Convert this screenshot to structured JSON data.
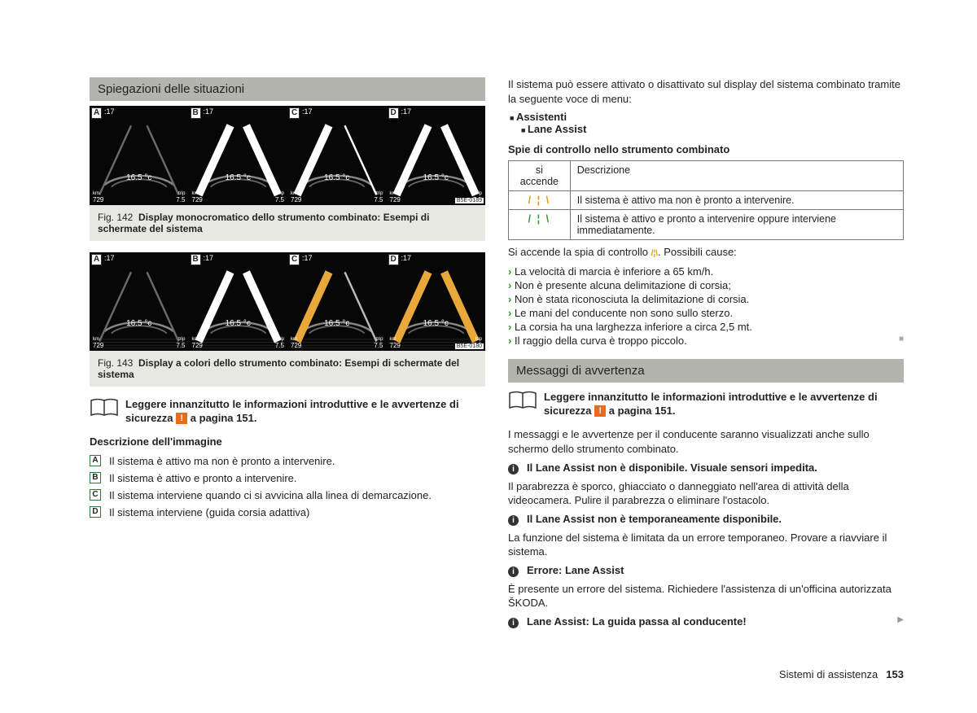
{
  "left": {
    "section_title": "Spiegazioni delle situazioni",
    "time": ":17",
    "temp": "16.5 °c",
    "km_label": "km",
    "km_val": "729",
    "trip_label": "trip",
    "trip_val": "7.5",
    "labels": [
      "A",
      "B",
      "C",
      "D"
    ],
    "ref1": "B5E-0189",
    "ref2": "B5E-0180",
    "fig1_num": "Fig. 142",
    "fig1_txt": "Display monocromatico dello strumento combinato: Esempi di schermate del sistema",
    "fig2_num": "Fig. 143",
    "fig2_txt": "Display a colori dello strumento combinato: Esempi di schermate del sistema",
    "read_first": "Leggere innanzitutto le informazioni introduttive e le avvertenze di sicurezza",
    "read_page": " a pagina 151.",
    "desc_head": "Descrizione dell'immagine",
    "desc": {
      "A": "Il sistema è attivo ma non è pronto a intervenire.",
      "B": "Il sistema è attivo e pronto a intervenire.",
      "C": "Il sistema interviene quando ci si avvicina alla linea di demarcazione.",
      "D": "Il sistema interviene (guida corsia adattiva)"
    },
    "colors": {
      "mono_line": "#ffffff",
      "mono_fill_dim": "#5a5a5a",
      "color_highlight": "#e8a93a",
      "bg": "#060606"
    }
  },
  "right": {
    "intro": "Il sistema può essere attivato o disattivato sul display del sistema combinato tramite la seguente voce di menu:",
    "menu1": "Assistenti",
    "menu2": "Lane Assist",
    "table_head": "Spie di controllo nello strumento combinato",
    "th1": "si accende",
    "th2": "Descrizione",
    "row1": "Il sistema è attivo ma non è pronto a intervenire.",
    "row2": "Il sistema è attivo e pronto a intervenire oppure interviene immediatamente.",
    "causes_intro_a": "Si accende la spia di controllo ",
    "causes_intro_b": ". Possibili cause:",
    "causes": [
      "La velocità di marcia è inferiore a 65 km/h.",
      "Non è presente alcuna delimitazione di corsia;",
      "Non è stata riconosciuta la delimitazione di corsia.",
      "Le mani del conducente non sono sullo sterzo.",
      "La corsia ha una larghezza inferiore a circa 2,5 mt.",
      "Il raggio della curva è troppo piccolo."
    ],
    "section2": "Messaggi di avvertenza",
    "read_first": "Leggere innanzitutto le informazioni introduttive e le avvertenze di sicurezza",
    "read_page": " a pagina 151.",
    "msg_intro": "I messaggi e le avvertenze per il conducente saranno visualizzati anche sullo schermo dello strumento combinato.",
    "m1_title": "Il Lane Assist non è disponibile. Visuale sensori impedita.",
    "m1_body": "Il parabrezza è sporco, ghiacciato o danneggiato nell'area di attività della videocamera. Pulire il parabrezza o eliminare l'ostacolo.",
    "m2_title": "Il Lane Assist non è temporaneamente disponibile.",
    "m2_body": "La funzione del sistema è limitata da un errore temporaneo. Provare a riavviare il sistema.",
    "m3_title": "Errore: Lane Assist",
    "m3_body": "È presente un errore del sistema. Richiedere l'assistenza di un'officina autorizzata ŠKODA.",
    "m4_title": "Lane Assist: La guida passa al conducente!"
  },
  "footer": {
    "section": "Sistemi di assistenza",
    "page": "153"
  }
}
